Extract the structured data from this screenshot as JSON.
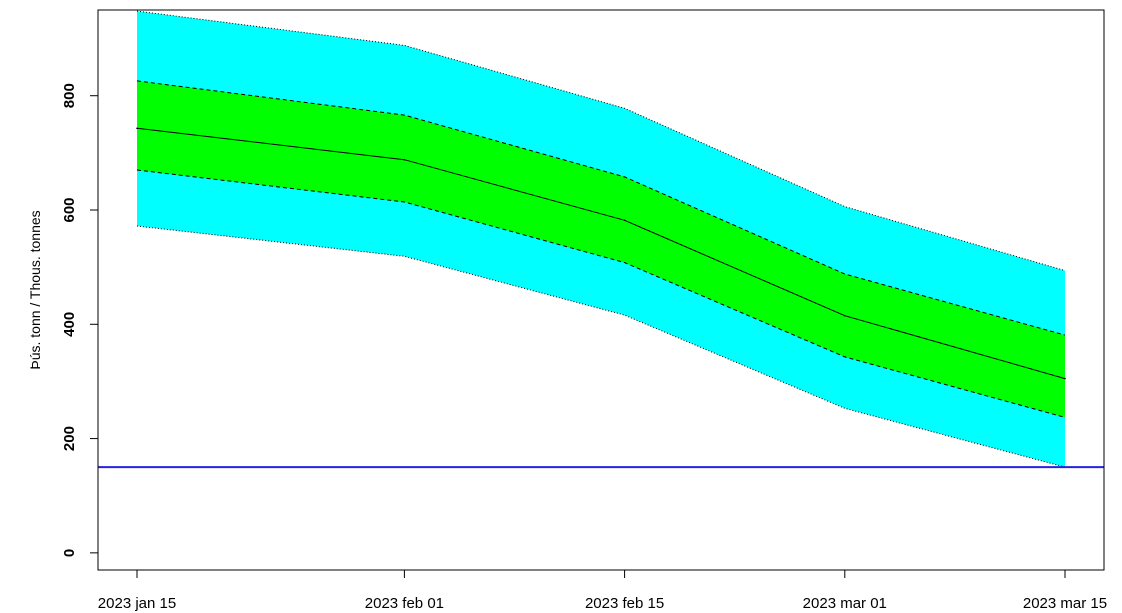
{
  "chart_data": {
    "type": "area",
    "ylabel": "Þús. tonn  /  Thous. tonnes",
    "x": [
      "2023-01-15",
      "2023-02-01",
      "2023-02-15",
      "2023-03-01",
      "2023-03-15"
    ],
    "x_tick_labels": [
      "2023 jan 15",
      "2023 feb 01",
      "2023 feb 15",
      "2023 mar 01",
      "2023 mar 15"
    ],
    "ylim": [
      -30,
      950
    ],
    "y_ticks": [
      0,
      200,
      400,
      600,
      800
    ],
    "series": [
      {
        "values": [
          743,
          688,
          582,
          415,
          305
        ]
      }
    ],
    "inner_band": {
      "lower": [
        670,
        614,
        508,
        343,
        237
      ],
      "upper": [
        826,
        766,
        658,
        488,
        381
      ]
    },
    "outer_band": {
      "lower": [
        572,
        519,
        416,
        253,
        150
      ],
      "upper": [
        948,
        888,
        778,
        606,
        494
      ]
    },
    "reference_line": 150,
    "colors": {
      "outer_band": "#00ffff",
      "inner_band": "#00ff00",
      "median": "#000000",
      "reference_line": "#2323e6"
    }
  }
}
